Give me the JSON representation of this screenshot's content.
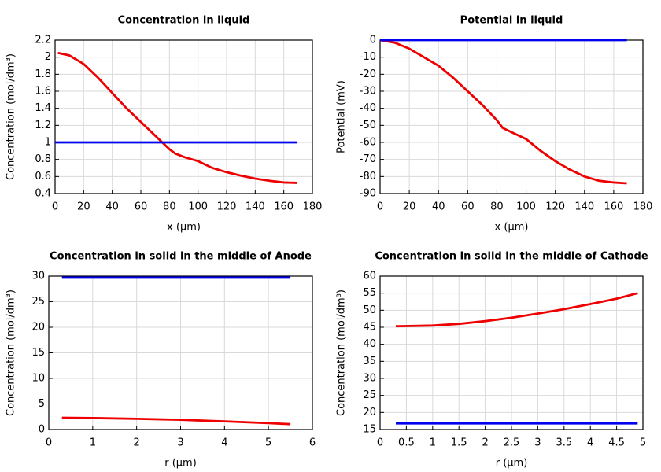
{
  "chart_data": [
    {
      "type": "line",
      "title": "Concentration in liquid",
      "xlabel": "x (µm)",
      "ylabel": "Concentration (mol/dm³)",
      "xlim": [
        0,
        180
      ],
      "ylim": [
        0.4,
        2.2
      ],
      "xticks": [
        0,
        20,
        40,
        60,
        80,
        100,
        120,
        140,
        160,
        180
      ],
      "yticks": [
        0.4,
        0.6,
        0.8,
        1,
        1.2,
        1.4,
        1.6,
        1.8,
        2,
        2.2
      ],
      "grid": true,
      "series": [
        {
          "color": "#ee0000",
          "x": [
            2,
            10,
            20,
            30,
            40,
            50,
            60,
            70,
            75,
            80,
            84,
            90,
            100,
            110,
            120,
            130,
            140,
            150,
            160,
            169
          ],
          "values": [
            2.05,
            2.02,
            1.92,
            1.76,
            1.58,
            1.4,
            1.24,
            1.08,
            1.0,
            0.92,
            0.87,
            0.83,
            0.78,
            0.7,
            0.65,
            0.61,
            0.575,
            0.55,
            0.53,
            0.525
          ]
        },
        {
          "color": "#0000ee",
          "x": [
            0,
            169
          ],
          "values": [
            1,
            1
          ]
        }
      ]
    },
    {
      "type": "line",
      "title": "Potential in liquid",
      "xlabel": "x (µm)",
      "ylabel": "Potential (mV)",
      "xlim": [
        0,
        180
      ],
      "ylim": [
        -90,
        0
      ],
      "xticks": [
        0,
        20,
        40,
        60,
        80,
        100,
        120,
        140,
        160,
        180
      ],
      "yticks": [
        0,
        -10,
        -20,
        -30,
        -40,
        -50,
        -60,
        -70,
        -80,
        -90
      ],
      "grid": true,
      "series": [
        {
          "color": "#ee0000",
          "x": [
            0,
            10,
            20,
            30,
            40,
            50,
            60,
            70,
            80,
            84,
            90,
            100,
            110,
            120,
            130,
            140,
            150,
            160,
            169
          ],
          "values": [
            0,
            -1.5,
            -5,
            -10,
            -15,
            -22,
            -30,
            -38,
            -47,
            -51.5,
            -54,
            -58,
            -65,
            -71,
            -76,
            -80,
            -82.5,
            -83.5,
            -84
          ]
        },
        {
          "color": "#0000ee",
          "x": [
            0,
            169
          ],
          "values": [
            0,
            0
          ]
        }
      ]
    },
    {
      "type": "line",
      "title": "Concentration in solid in the middle of Anode",
      "xlabel": "r (µm)",
      "ylabel": "Concentration (mol/dm³)",
      "xlim": [
        0,
        6
      ],
      "ylim": [
        0,
        30
      ],
      "xticks": [
        0,
        1,
        2,
        3,
        4,
        5,
        6
      ],
      "yticks": [
        0,
        5,
        10,
        15,
        20,
        25,
        30
      ],
      "grid": true,
      "series": [
        {
          "color": "#ee0000",
          "x": [
            0.3,
            1,
            2,
            3,
            4,
            5,
            5.5
          ],
          "values": [
            2.3,
            2.25,
            2.1,
            1.9,
            1.6,
            1.25,
            1.05
          ]
        },
        {
          "color": "#0000ee",
          "x": [
            0.3,
            5.5
          ],
          "values": [
            29.7,
            29.7
          ]
        }
      ]
    },
    {
      "type": "line",
      "title": "Concentration in solid in the middle of Cathode",
      "xlabel": "r (µm)",
      "ylabel": "Concentration (mol/dm³)",
      "xlim": [
        0,
        5
      ],
      "ylim": [
        15,
        60
      ],
      "xticks": [
        0,
        0.5,
        1,
        1.5,
        2,
        2.5,
        3,
        3.5,
        4,
        4.5,
        5
      ],
      "yticks": [
        15,
        20,
        25,
        30,
        35,
        40,
        45,
        50,
        55,
        60
      ],
      "grid": true,
      "series": [
        {
          "color": "#ee0000",
          "x": [
            0.3,
            1,
            1.5,
            2,
            2.5,
            3,
            3.5,
            4,
            4.5,
            4.9
          ],
          "values": [
            45.3,
            45.5,
            46,
            46.8,
            47.8,
            49,
            50.3,
            51.8,
            53.4,
            55
          ]
        },
        {
          "color": "#0000ee",
          "x": [
            0.3,
            4.9
          ],
          "values": [
            16.8,
            16.8
          ]
        }
      ]
    }
  ]
}
